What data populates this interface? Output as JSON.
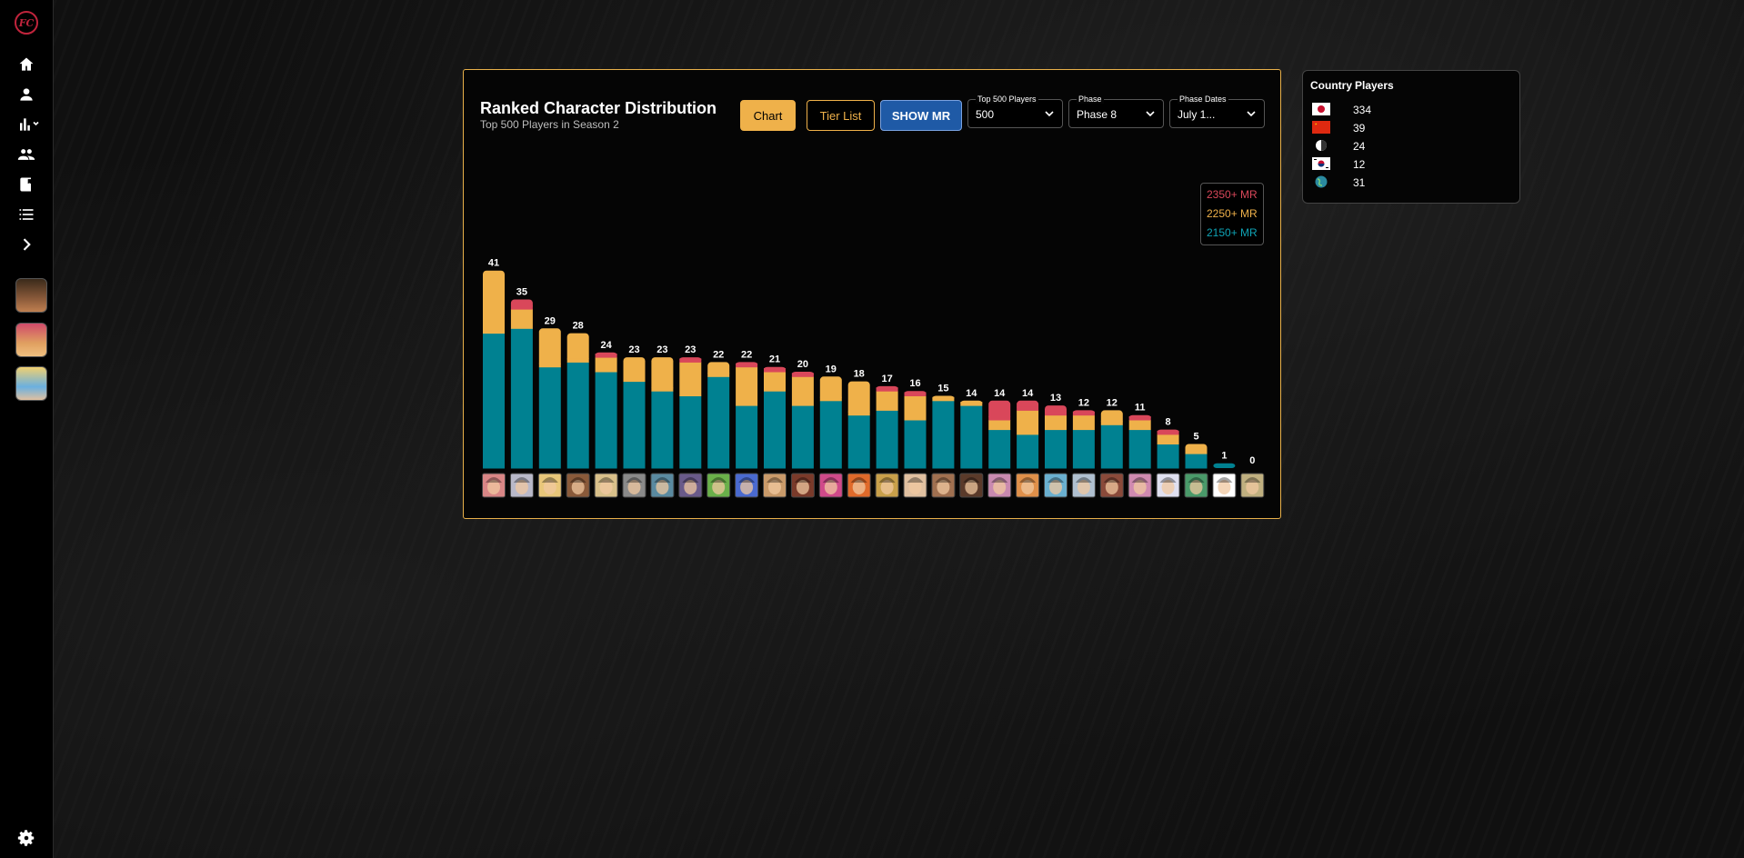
{
  "sidebar": {
    "logo": "FC",
    "nav": [
      "home-icon",
      "person-icon",
      "bar-chart-icon",
      "people-icon",
      "book-icon",
      "list-icon",
      "chevron-right-icon"
    ],
    "avatars": [
      "avatar-1",
      "avatar-2",
      "avatar-3"
    ],
    "settings": "gear-icon"
  },
  "panel": {
    "title": "Ranked Character Distribution",
    "subtitle": "Top 500 Players in Season 2",
    "buttons": {
      "chart": "Chart",
      "tier_list": "Tier List",
      "show_mr": "SHOW MR"
    },
    "selects": {
      "top_players": {
        "label": "Top 500 Players",
        "value": "500"
      },
      "phase": {
        "label": "Phase",
        "value": "Phase 8"
      },
      "phase_dates": {
        "label": "Phase Dates",
        "value": "July 1..."
      }
    },
    "legend": {
      "red": "2350+ MR",
      "yellow": "2250+ MR",
      "teal": "2150+ MR"
    }
  },
  "country_box": {
    "header_country": "Country",
    "header_players": "Players",
    "rows": [
      {
        "flag": "japan-flag-icon",
        "count": "334"
      },
      {
        "flag": "china-flag-icon",
        "count": "39"
      },
      {
        "flag": "unknown-flag-icon",
        "count": "24"
      },
      {
        "flag": "korea-flag-icon",
        "count": "12"
      },
      {
        "flag": "globe-icon",
        "count": "31"
      }
    ]
  },
  "colors": {
    "red": "#d9475a",
    "yellow": "#efb14a",
    "teal": "#008191",
    "accent": "#e8b04a"
  },
  "chart_data": {
    "type": "bar",
    "stacked": true,
    "totals": [
      41,
      35,
      29,
      28,
      24,
      23,
      23,
      23,
      22,
      22,
      21,
      20,
      19,
      18,
      17,
      16,
      15,
      14,
      14,
      14,
      13,
      12,
      12,
      11,
      8,
      5,
      1,
      0
    ],
    "series": [
      {
        "name": "2150+ MR",
        "color": "#008191",
        "values": [
          28,
          29,
          21,
          22,
          20,
          18,
          16,
          15,
          19,
          13,
          16,
          13,
          14,
          11,
          12,
          10,
          14,
          13,
          8,
          7,
          8,
          8,
          9,
          8,
          5,
          3,
          1,
          0
        ]
      },
      {
        "name": "2250+ MR",
        "color": "#efb14a",
        "values": [
          13,
          4,
          8,
          6,
          3,
          5,
          7,
          7,
          3,
          8,
          4,
          6,
          5,
          7,
          4,
          5,
          1,
          1,
          2,
          5,
          3,
          3,
          3,
          2,
          2,
          2,
          0,
          0
        ]
      },
      {
        "name": "2350+ MR",
        "color": "#d9475a",
        "values": [
          0,
          2,
          0,
          0,
          1,
          0,
          0,
          1,
          0,
          1,
          1,
          1,
          0,
          0,
          1,
          1,
          0,
          0,
          4,
          2,
          2,
          1,
          0,
          1,
          1,
          0,
          0,
          0
        ]
      }
    ],
    "portraits": [
      "#d98686",
      "#b9b9c9",
      "#e9c77a",
      "#8a5a3a",
      "#d9c08a",
      "#8a8a8a",
      "#5a8aa0",
      "#6a5a8a",
      "#6ab04a",
      "#4a6ad0",
      "#c99a6a",
      "#7a3a2a",
      "#d04a8a",
      "#e06a2a",
      "#c9a04a",
      "#e0c0a0",
      "#a07050",
      "#5a3a2a",
      "#c98ab0",
      "#e0904a",
      "#6ab0d0",
      "#b0c0d0",
      "#8a4a3a",
      "#d08ab0",
      "#e0e0f0",
      "#4a9a6a",
      "#ffffff",
      "#c0b080"
    ]
  }
}
